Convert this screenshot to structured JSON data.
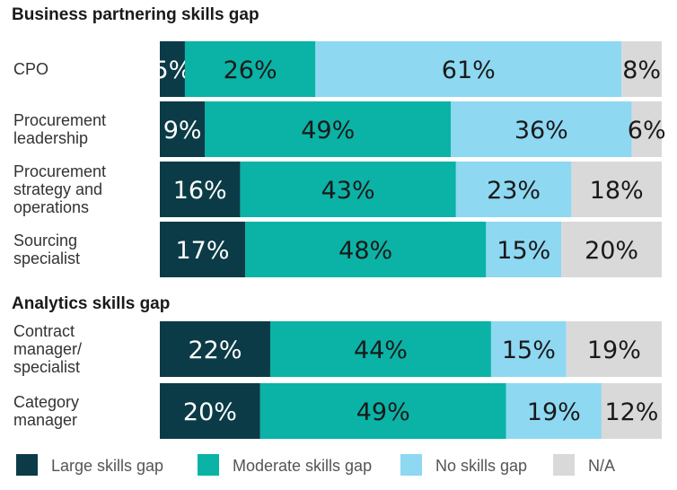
{
  "chart_data": [
    {
      "type": "bar",
      "orientation": "horizontal",
      "stacked": true,
      "title": "Business partnering skills gap",
      "categories": [
        "CPO",
        "Procurement leadership",
        "Procurement strategy and operations",
        "Sourcing specialist"
      ],
      "series": [
        {
          "name": "Large skills gap",
          "values": [
            5,
            9,
            16,
            17
          ]
        },
        {
          "name": "Moderate skills gap",
          "values": [
            26,
            49,
            43,
            48
          ]
        },
        {
          "name": "No skills gap",
          "values": [
            61,
            36,
            23,
            15
          ]
        },
        {
          "name": "N/A",
          "values": [
            8,
            6,
            18,
            20
          ]
        }
      ],
      "unit": "%",
      "xlim": [
        0,
        100
      ]
    },
    {
      "type": "bar",
      "orientation": "horizontal",
      "stacked": true,
      "title": "Analytics skills gap",
      "categories": [
        "Contract manager/ specialist",
        "Category manager"
      ],
      "series": [
        {
          "name": "Large skills gap",
          "values": [
            22,
            20
          ]
        },
        {
          "name": "Moderate skills gap",
          "values": [
            44,
            49
          ]
        },
        {
          "name": "No skills gap",
          "values": [
            15,
            19
          ]
        },
        {
          "name": "N/A",
          "values": [
            19,
            12
          ]
        }
      ],
      "unit": "%",
      "xlim": [
        0,
        100
      ]
    }
  ],
  "row_label_lines": [
    [
      "CPO"
    ],
    [
      "Procurement",
      "leadership"
    ],
    [
      "Procurement",
      "strategy and",
      "operations"
    ],
    [
      "Sourcing",
      "specialist"
    ],
    [
      "Contract",
      "manager/",
      "specialist"
    ],
    [
      "Category",
      "manager"
    ]
  ],
  "legend": {
    "position": "bottom",
    "items": [
      {
        "label": "Large skills gap",
        "color": "#0b3b47"
      },
      {
        "label": "Moderate skills gap",
        "color": "#0ab3a6"
      },
      {
        "label": "No skills gap",
        "color": "#8ed8f2"
      },
      {
        "label": "N/A",
        "color": "#d9d9d9"
      }
    ]
  },
  "colors": {
    "series": [
      "#0b3b47",
      "#0ab3a6",
      "#8ed8f2",
      "#d9d9d9"
    ],
    "label_light": "#ffffff",
    "label_dark": "#1a1a1a"
  }
}
